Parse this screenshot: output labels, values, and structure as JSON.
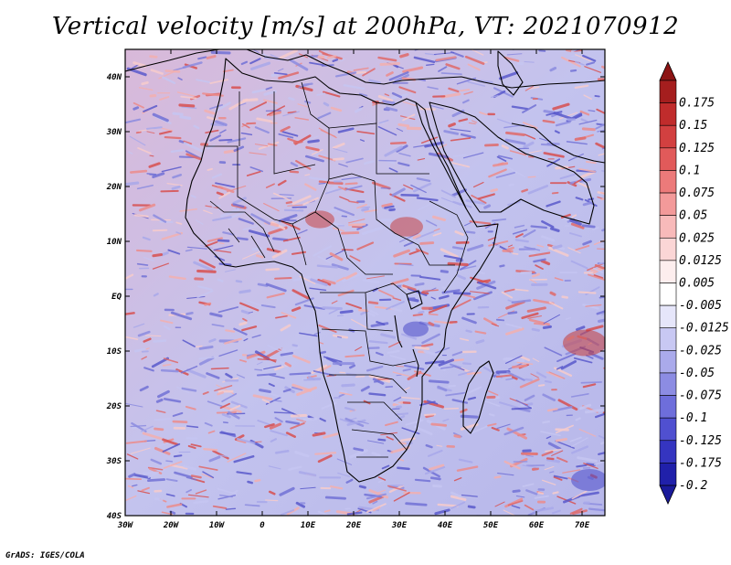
{
  "title": "Vertical velocity [m/s] at 200hPa, VT: 2021070912",
  "credit": "GrADS: IGES/COLA",
  "map": {
    "lat_range": [
      -40,
      45
    ],
    "lon_range": [
      -30,
      75
    ],
    "lat_ticks": [
      {
        "value": 40,
        "label": "40N"
      },
      {
        "value": 30,
        "label": "30N"
      },
      {
        "value": 20,
        "label": "20N"
      },
      {
        "value": 10,
        "label": "10N"
      },
      {
        "value": 0,
        "label": "EQ"
      },
      {
        "value": -10,
        "label": "10S"
      },
      {
        "value": -20,
        "label": "20S"
      },
      {
        "value": -30,
        "label": "30S"
      },
      {
        "value": -40,
        "label": "40S"
      }
    ],
    "lon_ticks": [
      {
        "value": -30,
        "label": "30W"
      },
      {
        "value": -20,
        "label": "20W"
      },
      {
        "value": -10,
        "label": "10W"
      },
      {
        "value": 0,
        "label": "0"
      },
      {
        "value": 10,
        "label": "10E"
      },
      {
        "value": 20,
        "label": "20E"
      },
      {
        "value": 30,
        "label": "30E"
      },
      {
        "value": 40,
        "label": "40E"
      },
      {
        "value": 50,
        "label": "50E"
      },
      {
        "value": 60,
        "label": "60E"
      },
      {
        "value": 70,
        "label": "70E"
      }
    ]
  },
  "colorbar": {
    "levels": [
      {
        "label": "0.175",
        "color": "#a51e1e"
      },
      {
        "label": "0.15",
        "color": "#c02c2c"
      },
      {
        "label": "0.125",
        "color": "#d24040"
      },
      {
        "label": "0.1",
        "color": "#e15a5a"
      },
      {
        "label": "0.075",
        "color": "#ec7a7a"
      },
      {
        "label": "0.05",
        "color": "#f39a9a"
      },
      {
        "label": "0.025",
        "color": "#f8baba"
      },
      {
        "label": "0.0125",
        "color": "#fbd6d6"
      },
      {
        "label": "0.005",
        "color": "#fdeeee"
      },
      {
        "label": "-0.005",
        "color": "#ffffff"
      },
      {
        "label": "-0.0125",
        "color": "#e6e6fa"
      },
      {
        "label": "-0.025",
        "color": "#c8c8f3"
      },
      {
        "label": "-0.05",
        "color": "#aaaaeb"
      },
      {
        "label": "-0.075",
        "color": "#8c8ce3"
      },
      {
        "label": "-0.1",
        "color": "#6e6edb"
      },
      {
        "label": "-0.125",
        "color": "#5050d0"
      },
      {
        "label": "-0.175",
        "color": "#3535c0"
      },
      {
        "label": "-0.2",
        "color": "#2020aa"
      }
    ],
    "top_color": "#8c1414",
    "bottom_color": "#1a1a9a"
  }
}
